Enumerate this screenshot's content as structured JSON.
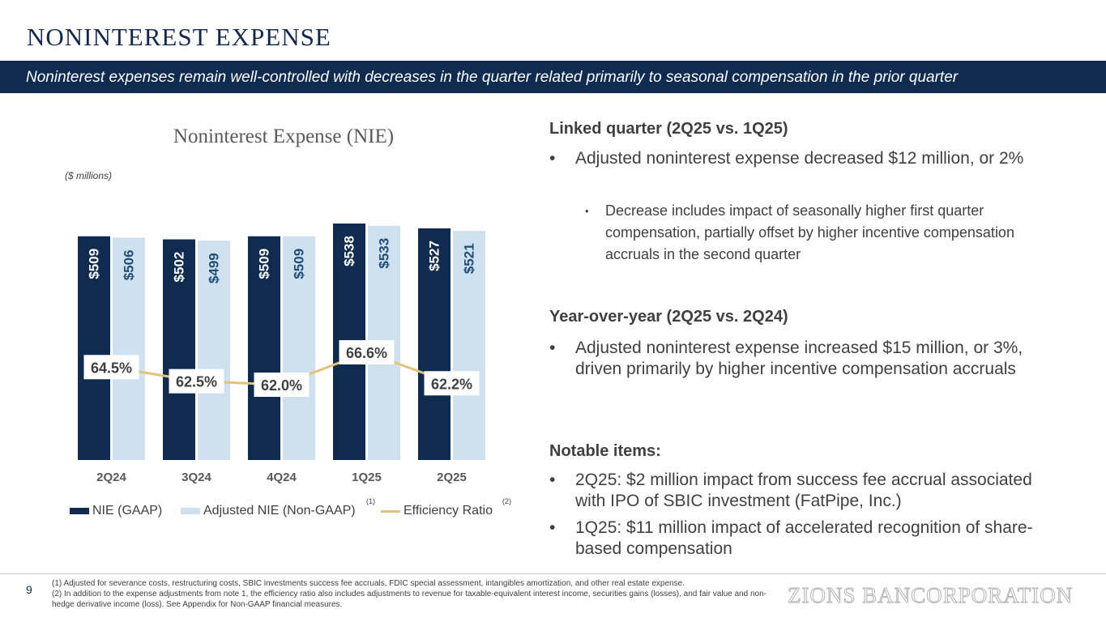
{
  "header": {
    "title": "NONINTEREST EXPENSE",
    "banner": "Noninterest expenses remain well-controlled with decreases in the quarter related primarily to seasonal compensation in the prior quarter"
  },
  "chart_data": {
    "type": "bar",
    "title": "Noninterest Expense (NIE)",
    "units_note": "($ millions)",
    "categories": [
      "2Q24",
      "3Q24",
      "4Q24",
      "1Q25",
      "2Q25"
    ],
    "series": [
      {
        "name": "NIE (GAAP)",
        "values": [
          509,
          502,
          509,
          538,
          527
        ],
        "labels": [
          "$509",
          "$502",
          "$509",
          "$538",
          "$527"
        ],
        "color": "#0f2b50"
      },
      {
        "name": "Adjusted NIE (Non-GAAP)",
        "footnote": "(1)",
        "values": [
          506,
          499,
          509,
          533,
          521
        ],
        "labels": [
          "$506",
          "$499",
          "$509",
          "$533",
          "$521"
        ],
        "color": "#cfe0ef"
      }
    ],
    "line_series": {
      "name": "Efficiency Ratio",
      "footnote": "(2)",
      "values": [
        64.5,
        62.5,
        62.0,
        66.6,
        62.2
      ],
      "labels": [
        "64.5%",
        "62.5%",
        "62.0%",
        "66.6%",
        "62.2%"
      ],
      "color": "#e4c27a"
    },
    "legend_position": "bottom",
    "grid": false
  },
  "commentary": {
    "linked_heading": "Linked quarter (2Q25 vs. 1Q25)",
    "linked_bullet": "Adjusted noninterest expense decreased $12 million, or 2%",
    "linked_sub_bullet": "Decrease includes impact of seasonally higher first quarter compensation, partially offset by higher incentive compensation accruals in the second quarter",
    "yoy_heading": "Year-over-year (2Q25 vs. 2Q24)",
    "yoy_bullet": "Adjusted noninterest expense increased $15 million, or 3%, driven primarily by higher incentive compensation accruals",
    "notable_heading": "Notable items:",
    "notable_items": [
      "2Q25: $2 million impact from success fee accrual associated with IPO of SBIC investment (FatPipe, Inc.)",
      "1Q25: $11 million impact of accelerated recognition of share-based compensation"
    ],
    "bullet_glyph": "•"
  },
  "footer": {
    "page_number": "9",
    "footnote_1": "(1)  Adjusted for severance costs, restructuring costs, SBIC investments success fee accruals, FDIC special assessment, intangibles amortization, and other real estate expense.",
    "footnote_2": "(2)  In addition to the expense adjustments from note 1, the efficiency ratio also includes adjustments to revenue for taxable-equivalent interest income, securities gains (losses), and fair value and non-hedge derivative income (loss). See Appendix for Non-GAAP financial measures.",
    "logo": "ZIONS BANCORPORATION"
  }
}
